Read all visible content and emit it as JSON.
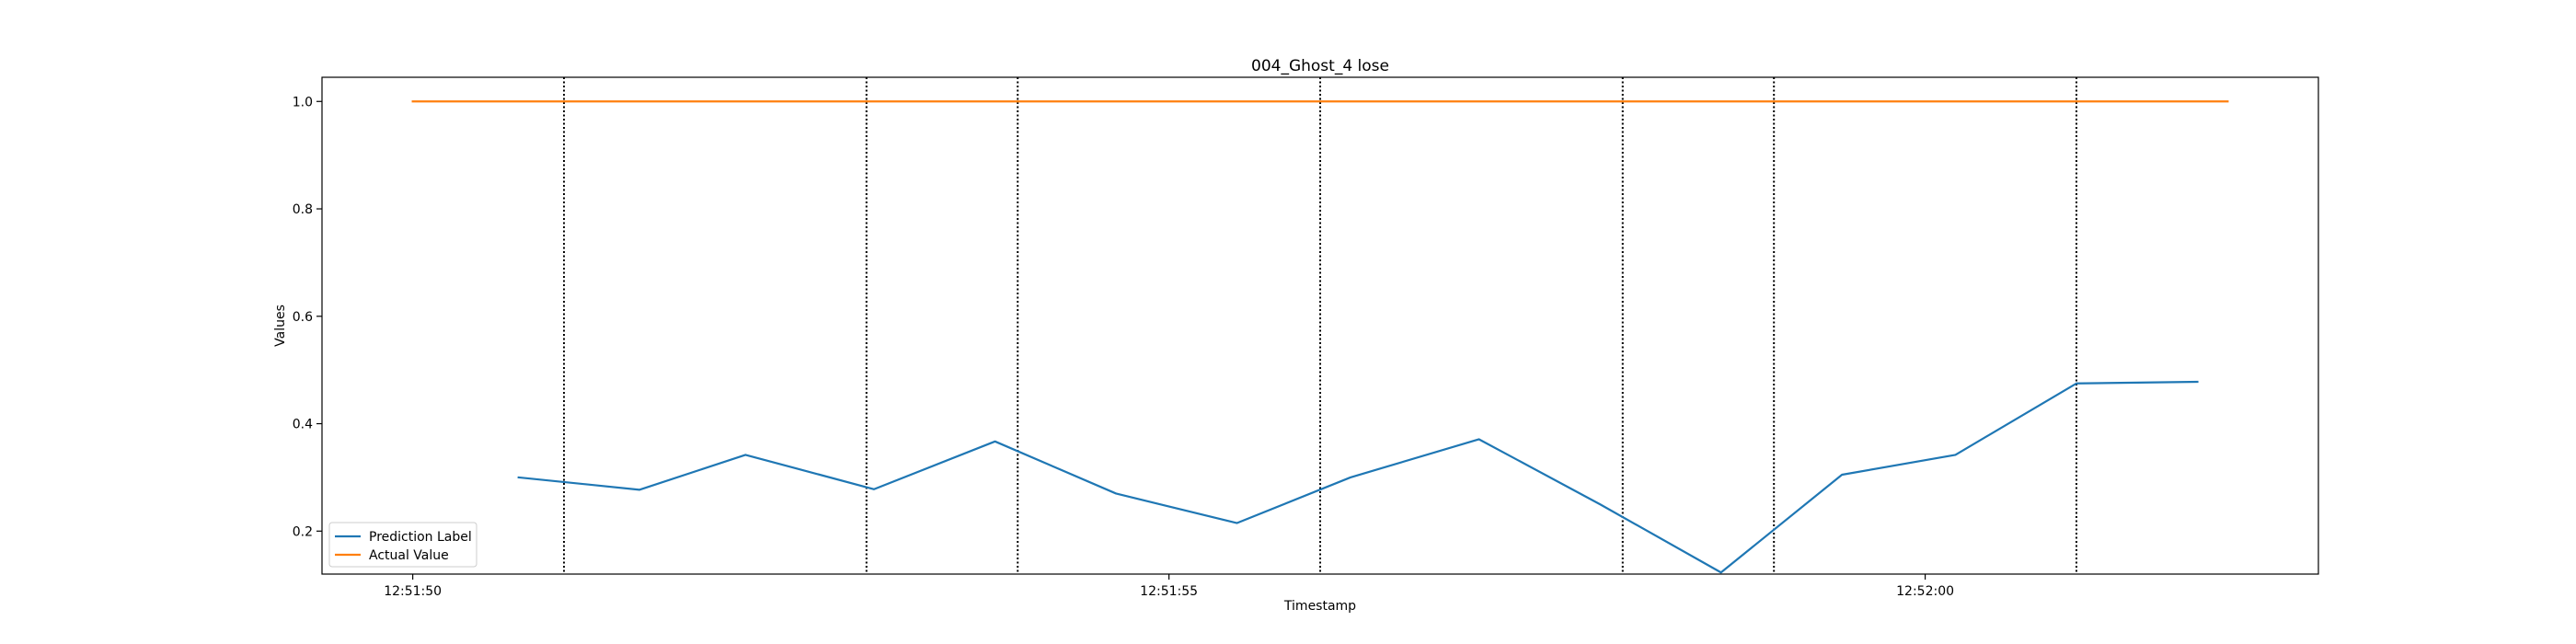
{
  "chart_data": {
    "type": "line",
    "title": "004_Ghost_4 lose",
    "xlabel": "Timestamp",
    "ylabel": "Values",
    "xlim": [
      "12:51:49.40",
      "12:52:02.60"
    ],
    "ylim": [
      0.12,
      1.045
    ],
    "x_ticks": [
      "12:51:50",
      "12:51:55",
      "12:52:00"
    ],
    "y_ticks": [
      "0.2",
      "0.4",
      "0.6",
      "0.8",
      "1.0"
    ],
    "grid": false,
    "legend_position": "lower-left",
    "series": [
      {
        "name": "Prediction Label",
        "color": "#1f77b4",
        "x": [
          "12:51:50.70",
          "12:51:51.50",
          "12:51:52.20",
          "12:51:53.05",
          "12:51:53.85",
          "12:51:54.65",
          "12:51:55.45",
          "12:51:56.20",
          "12:51:57.05",
          "12:51:57.85",
          "12:51:58.65",
          "12:51:59.45",
          "12:52:00.20",
          "12:52:01.00",
          "12:52:01.80"
        ],
        "values": [
          0.3,
          0.277,
          0.342,
          0.278,
          0.367,
          0.27,
          0.215,
          0.3,
          0.371,
          0.25,
          0.123,
          0.305,
          0.342,
          0.475,
          0.478
        ]
      },
      {
        "name": "Actual Value",
        "color": "#ff7f0e",
        "x": [
          "12:51:50.00",
          "12:52:02.00"
        ],
        "values": [
          1.0,
          1.0
        ]
      }
    ],
    "vlines": [
      "12:51:51.00",
      "12:51:53.00",
      "12:51:54.00",
      "12:51:56.00",
      "12:51:58.00",
      "12:51:59.00",
      "12:52:01.00"
    ]
  }
}
